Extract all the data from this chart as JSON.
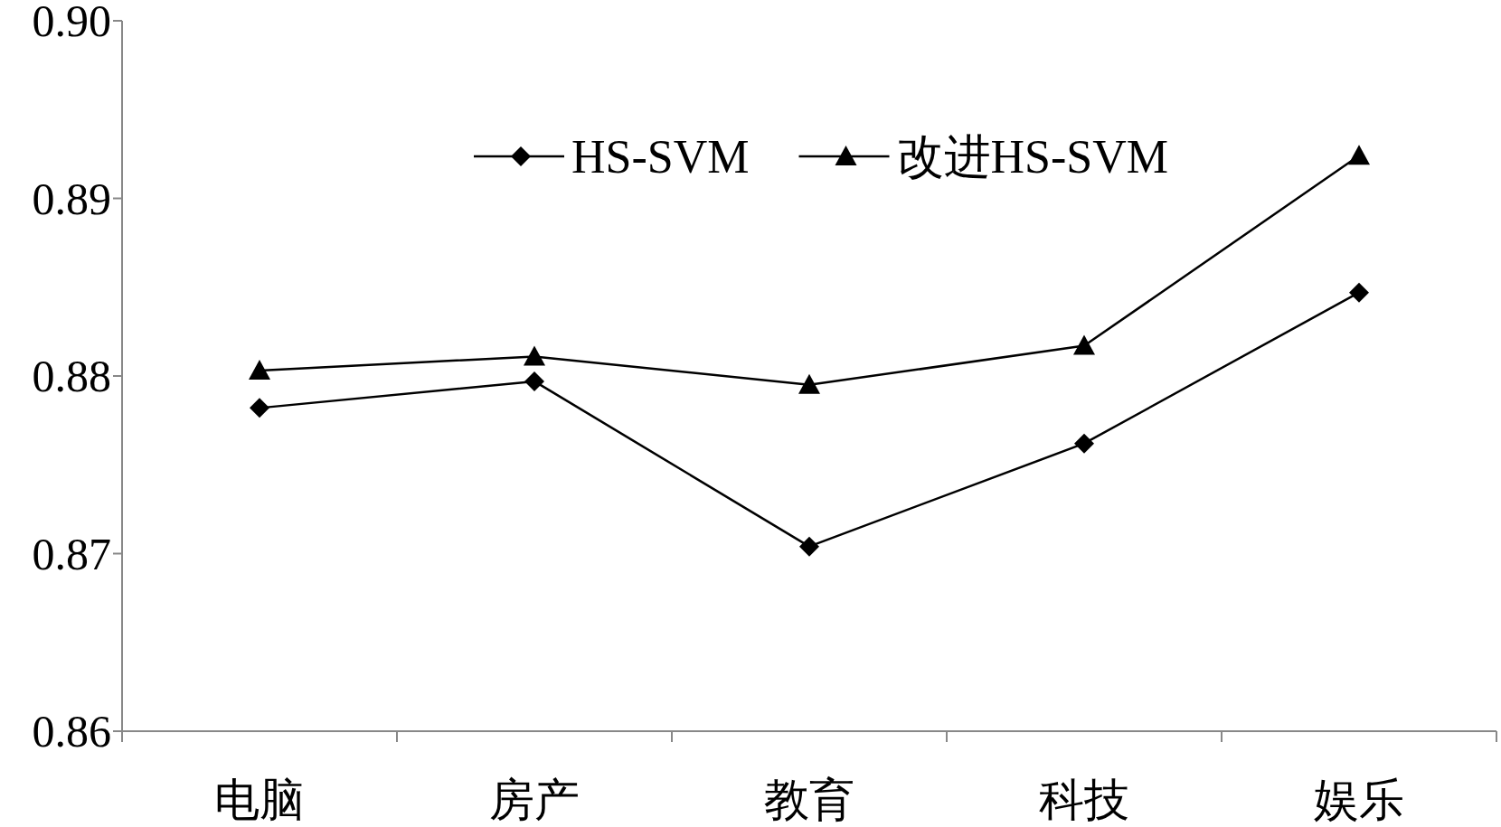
{
  "chart_data": {
    "type": "line",
    "categories": [
      "电脑",
      "房产",
      "教育",
      "科技",
      "娱乐"
    ],
    "series": [
      {
        "name": "HS-SVM",
        "color": "#000000",
        "marker": "diamond",
        "values": [
          0.8782,
          0.8797,
          0.8704,
          0.8762,
          0.8847
        ]
      },
      {
        "name": "改进HS-SVM",
        "color": "#000000",
        "marker": "triangle",
        "values": [
          0.8803,
          0.8811,
          0.8795,
          0.8817,
          0.8924
        ]
      }
    ],
    "ylim": [
      0.86,
      0.9
    ],
    "yticks": [
      0.86,
      0.87,
      0.88,
      0.89,
      {
        "value": 0.9,
        "label": "0.90"
      }
    ],
    "legend": "top",
    "line_style": "solid"
  }
}
